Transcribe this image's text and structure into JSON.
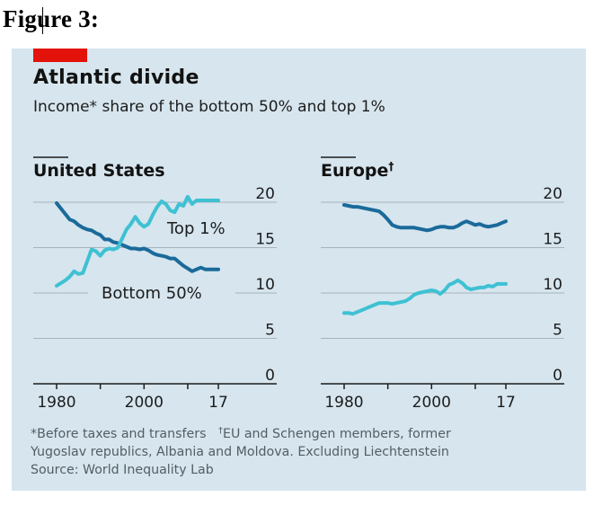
{
  "figure_label": "Figure 3:",
  "header": {
    "title": "Atlantic divide",
    "subtitle": "Income* share of the bottom 50% and top 1%"
  },
  "footnotes": {
    "line1_part1": "*Before taxes and transfers",
    "line1_dagger": "†",
    "line1_part2": "EU and Schengen members, former",
    "line2": "Yugoslav republics, Albania and Moldova. Excluding Liechtenstein",
    "line3": "Source: World Inequality Lab"
  },
  "colors": {
    "background": "#d6e5ee",
    "accent_red": "#e3120b",
    "bottom50": "#1a6a9a",
    "top1": "#3ec1d3",
    "gridline": "#a9b3ba",
    "axis": "#1c1c1c",
    "text": "#1c1c1c"
  },
  "chart_data": [
    {
      "type": "line",
      "title": "United States",
      "title_suffix": "",
      "xlabel": "",
      "ylabel": "",
      "xlim": [
        1980,
        2017
      ],
      "ylim": [
        0,
        20
      ],
      "yticks": [
        0,
        5,
        10,
        15,
        20
      ],
      "ytick_labels": [
        "0",
        "5",
        "10",
        "15",
        "20"
      ],
      "xticks": [
        1980,
        1990,
        2000,
        2010,
        2017
      ],
      "xtick_labels": [
        "1980",
        "",
        "2000",
        "",
        "17"
      ],
      "grid": true,
      "series": [
        {
          "name": "Bottom 50%",
          "label": "Bottom 50%",
          "color_key": "bottom50",
          "x": [
            1980,
            1981,
            1982,
            1983,
            1984,
            1985,
            1986,
            1987,
            1988,
            1989,
            1990,
            1991,
            1992,
            1993,
            1994,
            1995,
            1996,
            1997,
            1998,
            1999,
            2000,
            2001,
            2002,
            2003,
            2004,
            2005,
            2006,
            2007,
            2008,
            2009,
            2010,
            2011,
            2012,
            2013,
            2014,
            2015,
            2016,
            2017
          ],
          "values": [
            19.9,
            19.3,
            18.7,
            18.1,
            17.9,
            17.5,
            17.2,
            17.0,
            16.9,
            16.6,
            16.4,
            15.9,
            15.9,
            15.6,
            15.5,
            15.3,
            15.1,
            14.9,
            14.9,
            14.8,
            14.9,
            14.7,
            14.4,
            14.2,
            14.1,
            14.0,
            13.8,
            13.8,
            13.4,
            13.0,
            12.7,
            12.4,
            12.6,
            12.8,
            12.6,
            12.6,
            12.6,
            12.6
          ]
        },
        {
          "name": "Top 1%",
          "label": "Top 1%",
          "color_key": "top1",
          "x": [
            1980,
            1981,
            1982,
            1983,
            1984,
            1985,
            1986,
            1987,
            1988,
            1989,
            1990,
            1991,
            1992,
            1993,
            1994,
            1995,
            1996,
            1997,
            1998,
            1999,
            2000,
            2001,
            2002,
            2003,
            2004,
            2005,
            2006,
            2007,
            2008,
            2009,
            2010,
            2011,
            2012,
            2013,
            2014,
            2015,
            2016,
            2017
          ],
          "values": [
            10.8,
            11.1,
            11.4,
            11.8,
            12.4,
            12.1,
            12.2,
            13.5,
            14.8,
            14.6,
            14.1,
            14.7,
            14.9,
            14.8,
            15.0,
            16.0,
            17.0,
            17.6,
            18.4,
            17.7,
            17.3,
            17.6,
            18.6,
            19.5,
            20.1,
            19.8,
            19.1,
            18.9,
            19.8,
            19.6,
            20.6,
            19.8,
            20.2,
            20.2,
            20.2,
            20.2,
            20.2,
            20.2
          ]
        }
      ]
    },
    {
      "type": "line",
      "title": "Europe",
      "title_suffix": "†",
      "xlabel": "",
      "ylabel": "",
      "xlim": [
        1980,
        2017
      ],
      "ylim": [
        0,
        20
      ],
      "yticks": [
        0,
        5,
        10,
        15,
        20
      ],
      "ytick_labels": [
        "0",
        "5",
        "10",
        "15",
        "20"
      ],
      "xticks": [
        1980,
        1990,
        2000,
        2010,
        2017
      ],
      "xtick_labels": [
        "1980",
        "",
        "2000",
        "",
        "17"
      ],
      "grid": true,
      "series": [
        {
          "name": "Bottom 50%",
          "color_key": "bottom50",
          "x": [
            1980,
            1981,
            1982,
            1983,
            1984,
            1985,
            1986,
            1987,
            1988,
            1989,
            1990,
            1991,
            1992,
            1993,
            1994,
            1995,
            1996,
            1997,
            1998,
            1999,
            2000,
            2001,
            2002,
            2003,
            2004,
            2005,
            2006,
            2007,
            2008,
            2009,
            2010,
            2011,
            2012,
            2013,
            2014,
            2015,
            2016,
            2017
          ],
          "values": [
            19.7,
            19.6,
            19.5,
            19.5,
            19.4,
            19.3,
            19.2,
            19.1,
            19.0,
            18.6,
            18.1,
            17.5,
            17.3,
            17.2,
            17.2,
            17.2,
            17.2,
            17.1,
            17.0,
            16.9,
            17.0,
            17.2,
            17.3,
            17.3,
            17.2,
            17.2,
            17.4,
            17.7,
            17.9,
            17.7,
            17.5,
            17.6,
            17.4,
            17.3,
            17.4,
            17.5,
            17.7,
            17.9
          ]
        },
        {
          "name": "Top 1%",
          "color_key": "top1",
          "x": [
            1980,
            1981,
            1982,
            1983,
            1984,
            1985,
            1986,
            1987,
            1988,
            1989,
            1990,
            1991,
            1992,
            1993,
            1994,
            1995,
            1996,
            1997,
            1998,
            1999,
            2000,
            2001,
            2002,
            2003,
            2004,
            2005,
            2006,
            2007,
            2008,
            2009,
            2010,
            2011,
            2012,
            2013,
            2014,
            2015,
            2016,
            2017
          ],
          "values": [
            7.8,
            7.8,
            7.7,
            7.9,
            8.1,
            8.3,
            8.5,
            8.7,
            8.9,
            8.9,
            8.9,
            8.8,
            8.9,
            9.0,
            9.1,
            9.4,
            9.8,
            10.0,
            10.1,
            10.2,
            10.3,
            10.2,
            9.9,
            10.3,
            10.9,
            11.1,
            11.4,
            11.1,
            10.6,
            10.4,
            10.5,
            10.6,
            10.6,
            10.8,
            10.7,
            11.0,
            11.0,
            11.0
          ]
        }
      ]
    }
  ]
}
